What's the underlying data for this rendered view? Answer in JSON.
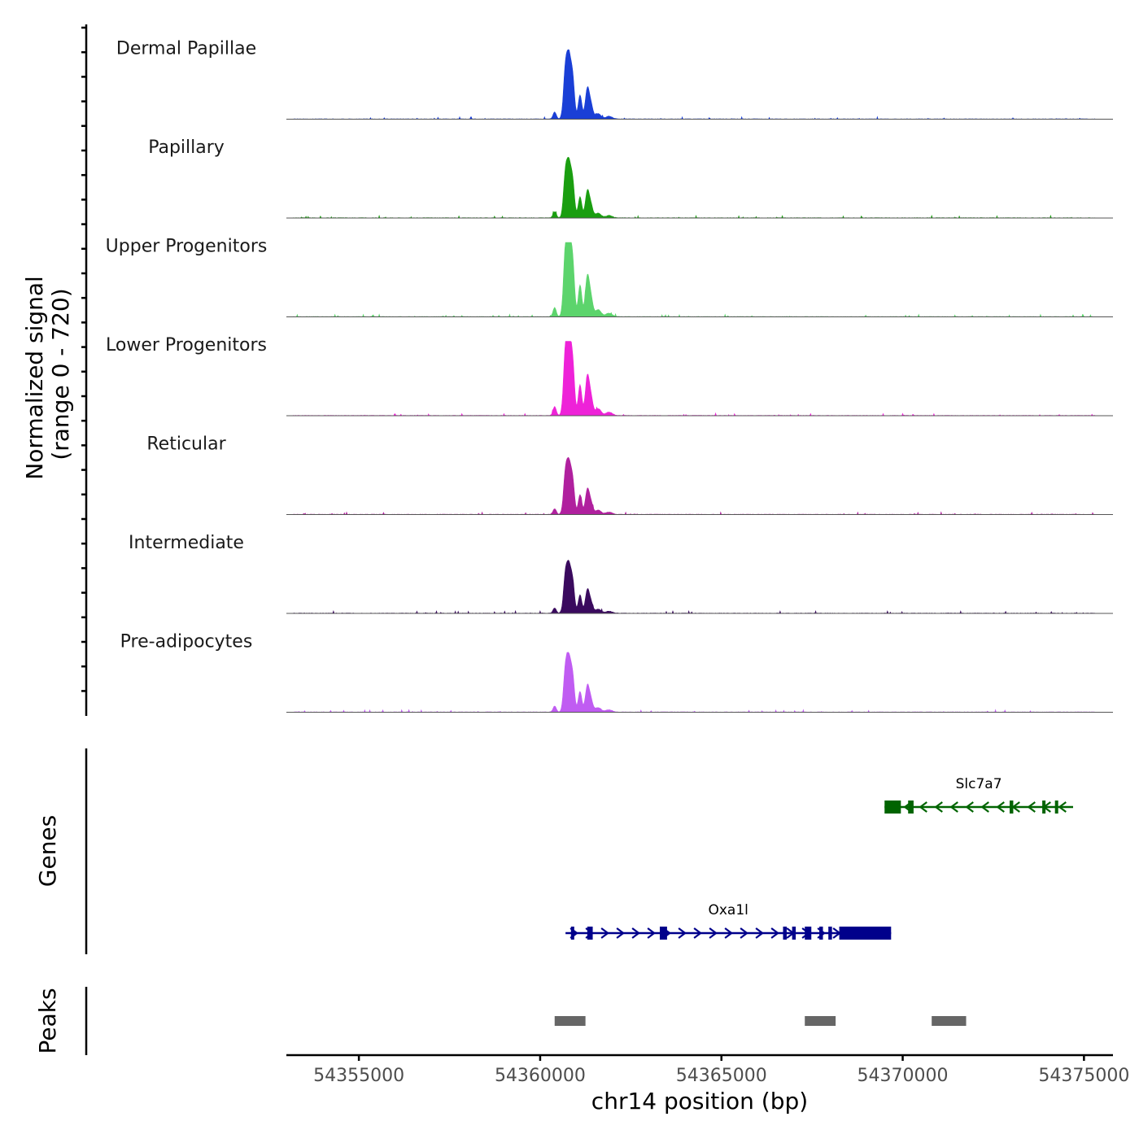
{
  "chart_data": {
    "type": "area",
    "chromosome": "chr14",
    "xlabel": "chr14 position (bp)",
    "xlim": [
      54353000,
      54375800
    ],
    "x_ticks": [
      54355000,
      54360000,
      54365000,
      54370000,
      54375000
    ],
    "x_tick_labels": [
      "54355000",
      "54360000",
      "54365000",
      "54370000",
      "54375000"
    ],
    "coverage": {
      "ylabel_line1": "Normalized signal",
      "ylabel_line2": "(range 0 - 720)",
      "range": [
        0,
        720
      ],
      "track_max": 720,
      "tracks": [
        {
          "name": "Dermal Papillae",
          "color": "#1a3fd6",
          "scale": 0.72
        },
        {
          "name": "Papillary",
          "color": "#1a9e10",
          "scale": 0.63
        },
        {
          "name": "Upper Progenitors",
          "color": "#5cd46c",
          "scale": 0.95
        },
        {
          "name": "Lower Progenitors",
          "color": "#ee22d8",
          "scale": 0.92
        },
        {
          "name": "Reticular",
          "color": "#b0209e",
          "scale": 0.59
        },
        {
          "name": "Intermediate",
          "color": "#3a0a5e",
          "scale": 0.55
        },
        {
          "name": "Pre-adipocytes",
          "color": "#c05cf2",
          "scale": 0.62
        }
      ],
      "profile_peaks": [
        {
          "pos": 54360400,
          "h": 0.13,
          "w": 45
        },
        {
          "pos": 54360700,
          "h": 0.92,
          "w": 55
        },
        {
          "pos": 54360800,
          "h": 1.0,
          "w": 55
        },
        {
          "pos": 54360900,
          "h": 0.7,
          "w": 50
        },
        {
          "pos": 54361100,
          "h": 0.45,
          "w": 50
        },
        {
          "pos": 54361300,
          "h": 0.55,
          "w": 55
        },
        {
          "pos": 54361400,
          "h": 0.25,
          "w": 55
        },
        {
          "pos": 54361600,
          "h": 0.1,
          "w": 80
        },
        {
          "pos": 54361900,
          "h": 0.05,
          "w": 90
        }
      ]
    },
    "genes": {
      "label": "Genes",
      "items": [
        {
          "name": "Slc7a7",
          "strand": "-",
          "color": "#006400",
          "start": 54369500,
          "end": 54374700,
          "exons": [
            [
              54369500,
              54369950
            ],
            [
              54370150,
              54370300
            ],
            [
              54372950,
              54373050
            ],
            [
              54373850,
              54373900
            ],
            [
              54374200,
              54374250
            ]
          ],
          "level": 0
        },
        {
          "name": "Oxa1l",
          "strand": "+",
          "color": "#00008b",
          "start": 54360700,
          "end": 54369680,
          "exons": [
            [
              54360850,
              54360900
            ],
            [
              54361300,
              54361450
            ],
            [
              54363300,
              54363500
            ],
            [
              54366700,
              54366800
            ],
            [
              54366950,
              54367050
            ],
            [
              54367300,
              54367480
            ],
            [
              54367700,
              54367800
            ],
            [
              54367950,
              54368050
            ],
            [
              54368250,
              54369680
            ]
          ],
          "level": 1
        }
      ]
    },
    "peaks": {
      "label": "Peaks",
      "color": "#666666",
      "regions": [
        [
          54360400,
          54361250
        ],
        [
          54367300,
          54368150
        ],
        [
          54370800,
          54371750
        ]
      ]
    }
  }
}
